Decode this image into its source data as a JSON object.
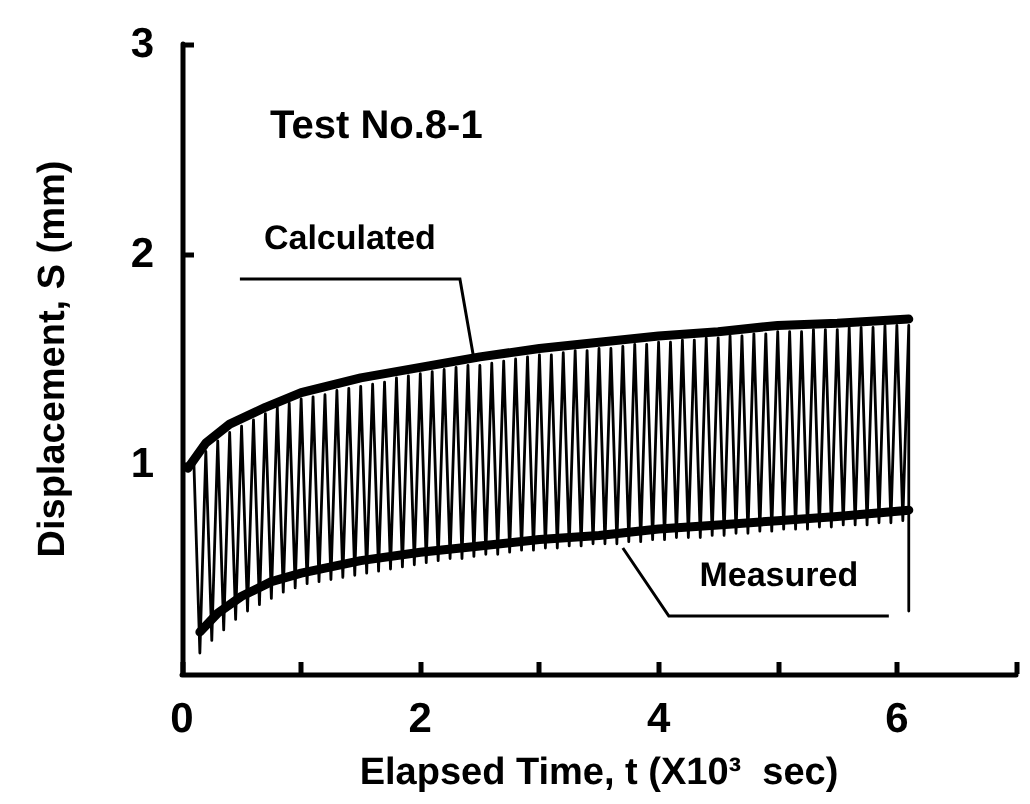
{
  "chart_data": {
    "type": "line",
    "title": "Test No.8-1",
    "xlabel": "Elapsed Time, t (X10³  sec)",
    "ylabel": "Displacement, S (mm)",
    "annotations": [
      {
        "text": "Calculated",
        "x": 2.45,
        "y": 1.5
      },
      {
        "text": "Measured",
        "x": 3.7,
        "y": 0.6
      }
    ],
    "xlim": [
      0,
      7
    ],
    "ylim": [
      0,
      3
    ],
    "xticks": [
      0,
      {
        "value": 1,
        "label": null
      },
      2,
      {
        "value": 3,
        "label": null
      },
      4,
      {
        "value": 5,
        "label": null
      },
      6,
      {
        "value": 7,
        "label": null
      }
    ],
    "yticks": [
      1,
      2,
      3
    ],
    "marker": "none",
    "line_style": "solid",
    "grid": false,
    "series": [
      {
        "color": "#000000",
        "x": [
          0.1,
          0.15,
          0.2,
          0.25,
          0.3,
          0.35,
          0.4,
          0.45,
          0.5,
          0.55,
          0.6,
          0.65,
          0.7,
          0.75,
          0.8,
          0.85,
          0.9,
          0.95,
          1.0,
          1.05,
          1.1,
          1.15,
          1.2,
          1.25,
          1.3,
          1.35,
          1.4,
          1.45,
          1.5,
          1.55,
          1.6,
          1.65,
          1.7,
          1.75,
          1.8,
          1.85,
          1.9,
          1.95,
          2.0,
          2.05,
          2.1,
          2.15,
          2.2,
          2.25,
          2.3,
          2.35,
          2.4,
          2.45,
          2.5,
          2.55,
          2.6,
          2.65,
          2.7,
          2.75,
          2.8,
          2.85,
          2.9,
          2.95,
          3.0,
          3.05,
          3.1,
          3.15,
          3.2,
          3.25,
          3.3,
          3.35,
          3.4,
          3.45,
          3.5,
          3.55,
          3.6,
          3.65,
          3.7,
          3.75,
          3.8,
          3.85,
          3.9,
          3.95,
          4.0,
          4.05,
          4.1,
          4.15,
          4.2,
          4.25,
          4.3,
          4.35,
          4.4,
          4.45,
          4.5,
          4.55,
          4.6,
          4.65,
          4.7,
          4.75,
          4.8,
          4.85,
          4.9,
          4.95,
          5.0,
          5.05,
          5.1,
          5.15,
          5.2,
          5.25,
          5.3,
          5.35,
          5.4,
          5.45,
          5.5,
          5.55,
          5.6,
          5.65,
          5.7,
          5.75,
          5.8,
          5.85,
          5.9,
          5.95,
          6.0,
          6.05,
          6.1,
          6.1
        ],
        "values": [
          1.0,
          0.1,
          1.06,
          0.16,
          1.11,
          0.21,
          1.15,
          0.26,
          1.18,
          0.3,
          1.21,
          0.33,
          1.24,
          0.36,
          1.27,
          0.39,
          1.29,
          0.41,
          1.31,
          0.43,
          1.32,
          0.44,
          1.33,
          0.45,
          1.35,
          0.46,
          1.36,
          0.47,
          1.37,
          0.48,
          1.38,
          0.49,
          1.39,
          0.5,
          1.41,
          0.51,
          1.42,
          0.52,
          1.43,
          0.53,
          1.44,
          0.54,
          1.45,
          0.55,
          1.46,
          0.55,
          1.47,
          0.56,
          1.47,
          0.57,
          1.48,
          0.57,
          1.49,
          0.58,
          1.5,
          0.59,
          1.51,
          0.59,
          1.52,
          0.6,
          1.52,
          0.6,
          1.53,
          0.61,
          1.54,
          0.61,
          1.54,
          0.62,
          1.55,
          0.62,
          1.55,
          0.62,
          1.56,
          0.63,
          1.57,
          0.63,
          1.57,
          0.64,
          1.58,
          0.64,
          1.58,
          0.65,
          1.59,
          0.65,
          1.59,
          0.65,
          1.6,
          0.66,
          1.6,
          0.66,
          1.61,
          0.67,
          1.61,
          0.67,
          1.62,
          0.68,
          1.62,
          0.68,
          1.63,
          0.69,
          1.63,
          0.69,
          1.63,
          0.69,
          1.64,
          0.7,
          1.64,
          0.7,
          1.64,
          0.71,
          1.65,
          0.71,
          1.65,
          0.71,
          1.65,
          0.72,
          1.66,
          0.72,
          1.66,
          0.73,
          1.66,
          0.3
        ]
      },
      {
        "color": "#000000",
        "x": [
          0.05,
          0.2,
          0.4,
          0.7,
          1,
          1.5,
          2,
          2.5,
          3,
          3.5,
          4,
          4.5,
          5,
          5.5,
          6.1
        ],
        "values": [
          0.98,
          1.1,
          1.19,
          1.27,
          1.34,
          1.41,
          1.46,
          1.51,
          1.55,
          1.58,
          1.61,
          1.63,
          1.66,
          1.67,
          1.69
        ]
      },
      {
        "color": "#000000",
        "x": [
          0.15,
          0.3,
          0.5,
          0.75,
          1,
          1.5,
          2,
          2.5,
          3,
          3.5,
          4,
          4.5,
          5,
          5.5,
          6.1
        ],
        "values": [
          0.2,
          0.29,
          0.37,
          0.44,
          0.48,
          0.54,
          0.58,
          0.61,
          0.64,
          0.66,
          0.69,
          0.71,
          0.73,
          0.75,
          0.78
        ]
      }
    ]
  }
}
